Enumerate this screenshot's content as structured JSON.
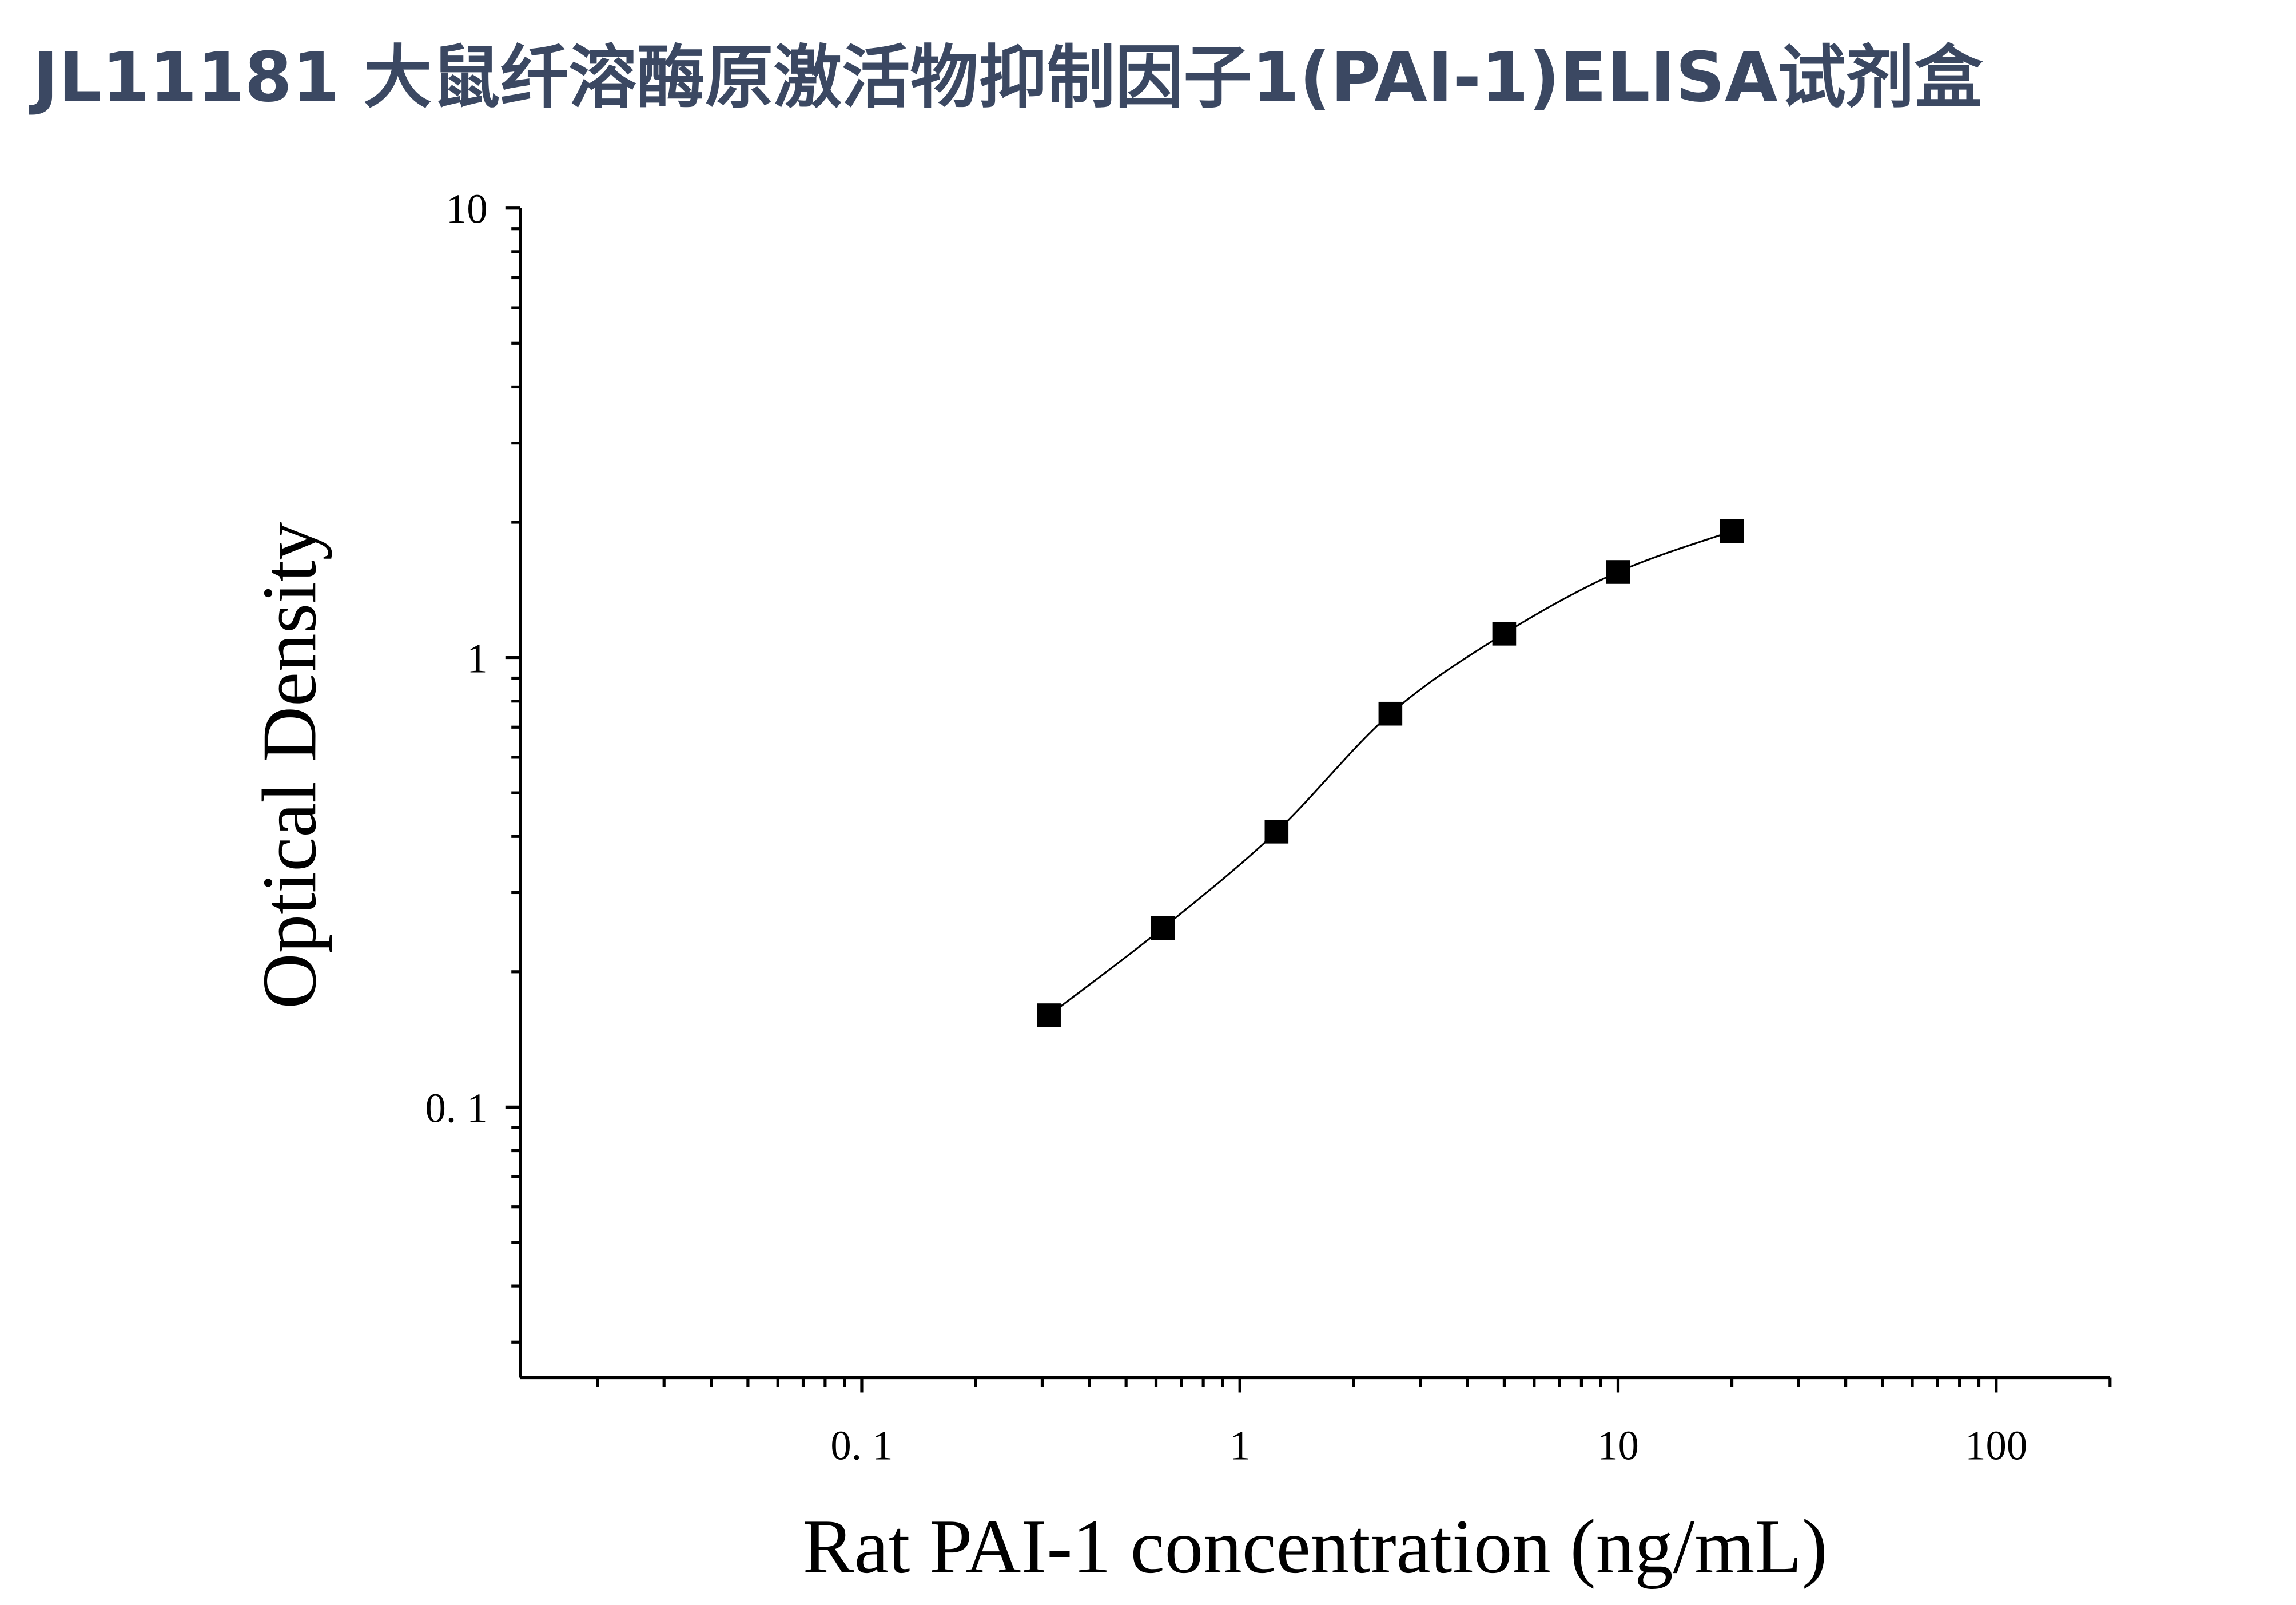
{
  "chart_data": {
    "type": "scatter",
    "title": "JL11181 大鼠纤溶酶原激活物抑制因子1(PAI-1)ELISA试剂盒",
    "x_label": "Rat PAI-1 concentration (ng/mL)",
    "y_label": "Optical Density",
    "x": [
      0.3125,
      0.625,
      1.25,
      2.5,
      5,
      10,
      20
    ],
    "series": [
      {
        "color": "#000000",
        "values": [
          0.16,
          0.25,
          0.41,
          0.75,
          1.13,
          1.55,
          1.91
        ]
      }
    ],
    "x_log": true,
    "y_log": true,
    "xlim": [
      0.0125,
      200
    ],
    "ylim": [
      0.025,
      10
    ],
    "xticks": [
      {
        "value": 0.1,
        "label": "0. 1"
      },
      1,
      10,
      100
    ],
    "yticks": [
      {
        "value": 0.1,
        "label": "0. 1"
      },
      1,
      10
    ],
    "x_minor_ticks": [
      0.02,
      0.03,
      0.04,
      0.05,
      0.06,
      0.07,
      0.08,
      0.09,
      0.2,
      0.3,
      0.4,
      0.5,
      0.6,
      0.7,
      0.8,
      0.9,
      2,
      3,
      4,
      5,
      6,
      7,
      8,
      9,
      20,
      30,
      40,
      50,
      60,
      70,
      80,
      90,
      200
    ],
    "y_minor_ticks": [
      0.03,
      0.04,
      0.05,
      0.06,
      0.07,
      0.08,
      0.09,
      0.2,
      0.3,
      0.4,
      0.5,
      0.6,
      0.7,
      0.8,
      0.9,
      2,
      3,
      4,
      5,
      6,
      7,
      8,
      9
    ],
    "fit_curve": true,
    "grid": false
  }
}
